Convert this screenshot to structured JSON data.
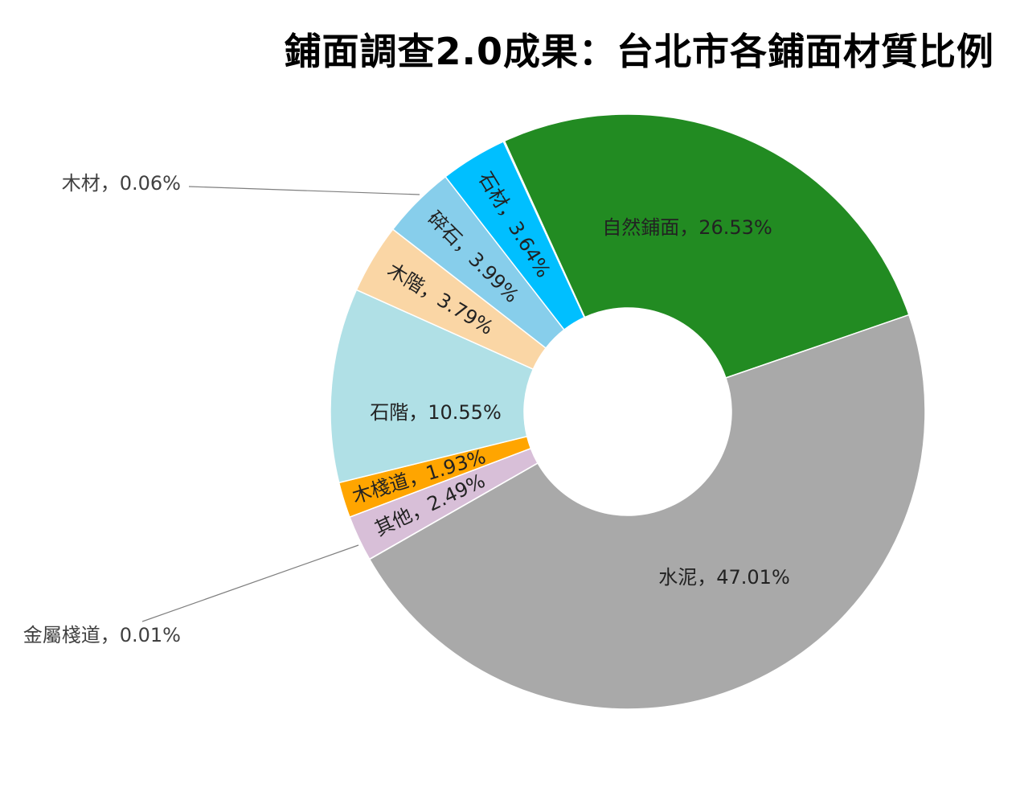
{
  "chart_data": {
    "type": "pie",
    "title": "鋪面調查2.0成果：台北市各鋪面材質比例",
    "donut": true,
    "start_category": "自然鋪面",
    "direction": "clockwise",
    "legend": "none",
    "separator": "，",
    "slices": [
      {
        "label": "自然鋪面",
        "value": 26.53,
        "value_text": "26.53%",
        "color": "#228B22",
        "label_style": "horizontal"
      },
      {
        "label": "水泥",
        "value": 47.01,
        "value_text": "47.01%",
        "color": "#A9A9A9",
        "label_style": "horizontal"
      },
      {
        "label": "金屬棧道",
        "value": 0.01,
        "value_text": "0.01%",
        "color": "#8B4513",
        "label_style": "outside"
      },
      {
        "label": "其他",
        "value": 2.49,
        "value_text": "2.49%",
        "color": "#D8BFD8",
        "label_style": "radial"
      },
      {
        "label": "木棧道",
        "value": 1.93,
        "value_text": "1.93%",
        "color": "#FFA500",
        "label_style": "radial"
      },
      {
        "label": "石階",
        "value": 10.55,
        "value_text": "10.55%",
        "color": "#B0E0E6",
        "label_style": "horizontal"
      },
      {
        "label": "木階",
        "value": 3.79,
        "value_text": "3.79%",
        "color": "#FAD6A5",
        "label_style": "radial"
      },
      {
        "label": "碎石",
        "value": 3.99,
        "value_text": "3.99%",
        "color": "#87CEEB",
        "label_style": "radial"
      },
      {
        "label": "石材",
        "value": 3.64,
        "value_text": "3.64%",
        "color": "#00BFFF",
        "label_style": "radial"
      },
      {
        "label": "木材",
        "value": 0.06,
        "value_text": "0.06%",
        "color": "#DEB887",
        "label_style": "outside"
      }
    ]
  }
}
